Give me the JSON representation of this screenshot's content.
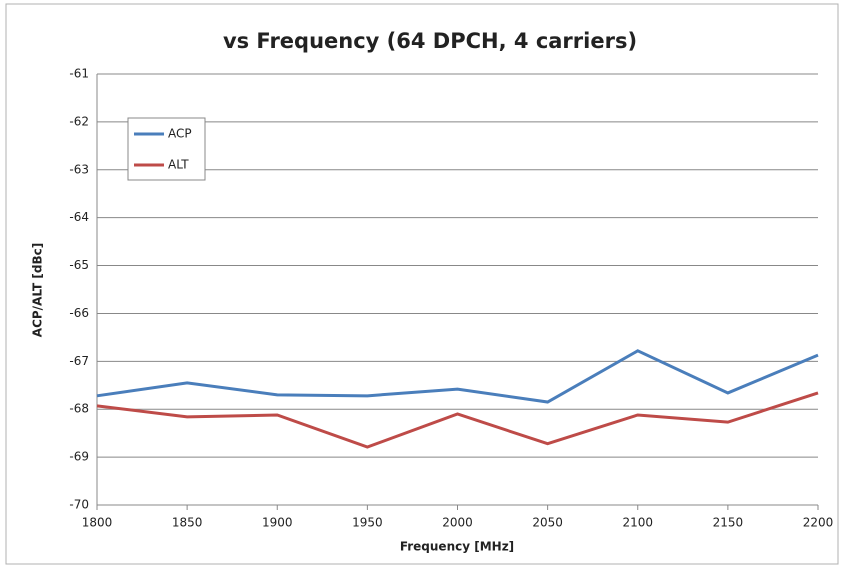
{
  "chart_data": {
    "type": "line",
    "title": "vs Frequency (64 DPCH, 4 carriers)",
    "xlabel": "Frequency [MHz]",
    "ylabel": "ACP/ALT [dBc]",
    "x": [
      1800,
      1850,
      1900,
      1950,
      2000,
      2050,
      2100,
      2150,
      2200
    ],
    "series": [
      {
        "name": "ACP",
        "color": "#4a7ebb",
        "values": [
          -67.72,
          -67.45,
          -67.7,
          -67.72,
          -67.58,
          -67.85,
          -66.78,
          -67.66,
          -66.87
        ]
      },
      {
        "name": "ALT",
        "color": "#be4b48",
        "values": [
          -67.93,
          -68.16,
          -68.12,
          -68.79,
          -68.1,
          -68.72,
          -68.12,
          -68.27,
          -67.66
        ]
      }
    ],
    "xlim": [
      1800,
      2200
    ],
    "xticks": [
      1800,
      1850,
      1900,
      1950,
      2000,
      2050,
      2100,
      2150,
      2200
    ],
    "ylim": [
      -70,
      -61
    ],
    "yticks": [
      -70,
      -69,
      -68,
      -67,
      -66,
      -65,
      -64,
      -63,
      -62,
      -61
    ],
    "grid": true,
    "legend": "upper left"
  }
}
